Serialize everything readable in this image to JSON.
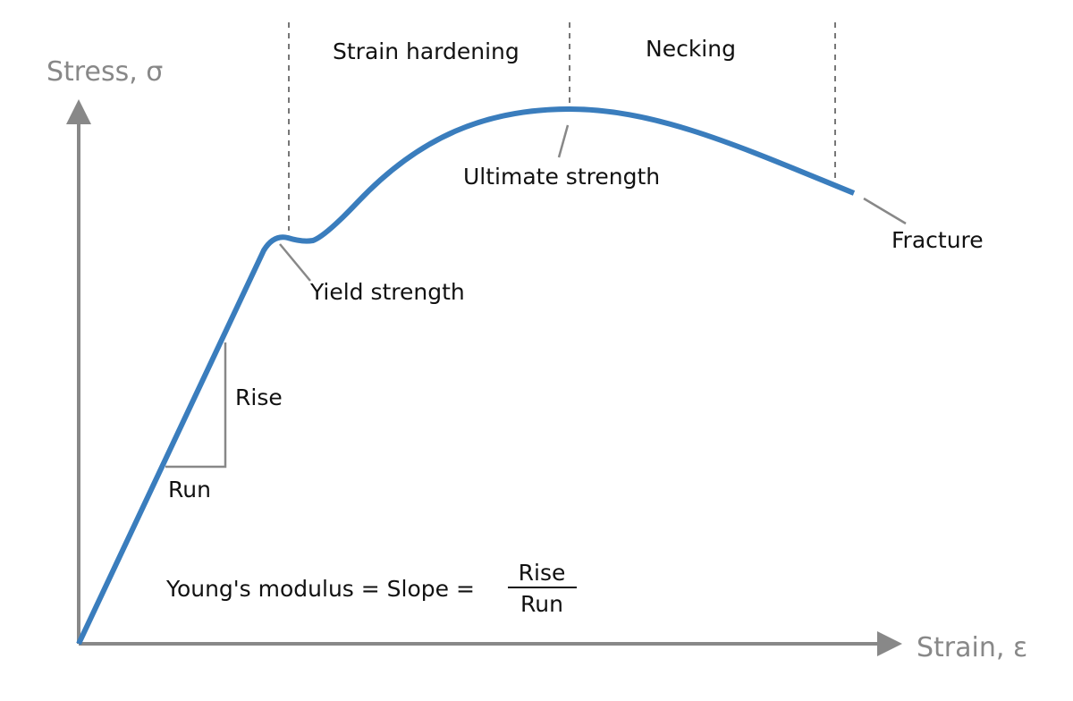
{
  "axes": {
    "y_label": "Stress, σ",
    "x_label": "Strain, ε"
  },
  "regions": {
    "strain_hardening": "Strain hardening",
    "necking": "Necking"
  },
  "points": {
    "yield": "Yield strength",
    "ultimate": "Ultimate strength",
    "fracture": "Fracture"
  },
  "slope_triangle": {
    "rise": "Rise",
    "run": "Run"
  },
  "formula": {
    "lhs": "Young's modulus = Slope =",
    "numerator": "Rise",
    "denominator": "Run"
  },
  "colors": {
    "curve": "#3a7dbd",
    "axes": "#888888",
    "guides": "#777777"
  }
}
